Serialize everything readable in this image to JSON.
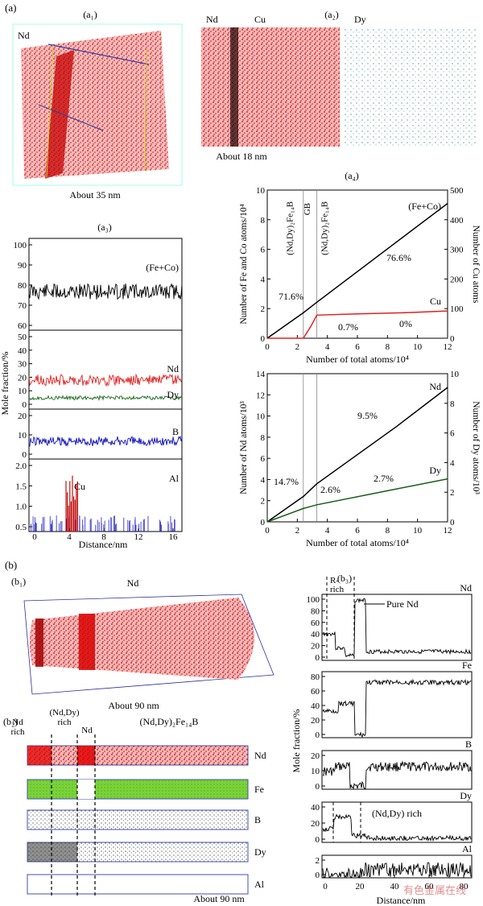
{
  "part_a_label": "(a)",
  "part_b_label": "(b)",
  "a1": {
    "label": "(a₁)",
    "element": "Nd",
    "size_caption": "About 35 nm"
  },
  "a2": {
    "label": "(a₂)",
    "elements": [
      "Nd",
      "Cu",
      "Dy"
    ],
    "size_caption": "About 18 nm"
  },
  "a3": {
    "label": "(a₃)",
    "ylabel": "Mole fraction/%",
    "xlabel": "Distance/nm",
    "x_ticks": [
      "0",
      "4",
      "8",
      "12",
      "16"
    ],
    "panels": [
      {
        "name": "(Fe+Co)",
        "y_ticks": [
          "100",
          "90",
          "80",
          "70",
          "60"
        ]
      },
      {
        "name": "Nd",
        "name2": "Dy",
        "y_ticks": [
          "50",
          "40",
          "30",
          "20",
          "10",
          "0"
        ]
      },
      {
        "name": "B",
        "y_ticks": [
          "20",
          "10",
          "0"
        ]
      },
      {
        "name": "Al",
        "name2": "Cu",
        "y_ticks": [
          "2.0",
          "1.5",
          "1.0",
          "0.5"
        ]
      }
    ]
  },
  "a4": {
    "label": "(a₄)",
    "xlabel": "Number of total atoms/10⁴",
    "x_ticks": [
      "0",
      "2",
      "4",
      "6",
      "8",
      "10",
      "12"
    ],
    "top": {
      "ylabel_left": "Number of Fe and Co atoms/10⁴",
      "ylabel_right": "Number of Cu atoms",
      "left_ticks": [
        "0",
        "2",
        "4",
        "6",
        "8",
        "10"
      ],
      "right_ticks": [
        "0",
        "100",
        "200",
        "300",
        "400",
        "500"
      ],
      "phase_left": "(Nd,Dy)₂Fe₁₄B",
      "phase_gb": "GB",
      "phase_right": "(Nd,Dy)₂Fe₁₄B",
      "series_fe": "(Fe+Co)",
      "series_cu": "Cu",
      "ann_716": "71.6%",
      "ann_766": "76.6%",
      "ann_07": "0.7%",
      "ann_0": "0%"
    },
    "bottom": {
      "ylabel_left": "Number of Nd atoms/10³",
      "ylabel_right": "Number of Dy atoms/10³",
      "left_ticks": [
        "0",
        "2",
        "4",
        "6",
        "8",
        "10",
        "12",
        "14"
      ],
      "right_ticks": [
        "0",
        "2",
        "4",
        "6",
        "8",
        "10"
      ],
      "series_nd": "Nd",
      "series_dy": "Dy",
      "ann_147": "14.7%",
      "ann_95": "9.5%",
      "ann_26": "2.6%",
      "ann_27": "2.7%"
    }
  },
  "b1": {
    "label": "(b₁)",
    "element": "Nd",
    "size_caption": "About 90 nm"
  },
  "b2": {
    "label": "(b₂)",
    "regions": [
      "Nd rich",
      "(Nd,Dy) rich",
      "Nd",
      "(Nd,Dy)₂Fe₁₄B"
    ],
    "elements": [
      "Nd",
      "Fe",
      "B",
      "Dy",
      "Al"
    ],
    "size_caption": "About 90 nm"
  },
  "b3": {
    "label": "(b₃)",
    "r_rich": "R-rich",
    "ylabel": "Mole fraction/%",
    "xlabel": "Distance/nm",
    "x_ticks": [
      "0",
      "20",
      "40",
      "60",
      "80"
    ],
    "panels": [
      {
        "name": "Nd",
        "y_ticks": [
          "100",
          "80",
          "60",
          "40",
          "20",
          "0"
        ],
        "annotation": "Pure Nd"
      },
      {
        "name": "Fe",
        "y_ticks": [
          "80",
          "60",
          "40",
          "20",
          "0"
        ]
      },
      {
        "name": "B",
        "y_ticks": [
          "20",
          "10",
          "0"
        ]
      },
      {
        "name": "Dy",
        "y_ticks": [
          "40",
          "20",
          "0"
        ],
        "annotation": "(Nd,Dy) rich"
      },
      {
        "name": "Al",
        "y_ticks": [
          "2",
          "0"
        ]
      }
    ],
    "watermark": "有色金属在线"
  },
  "chart_data": [
    {
      "type": "line",
      "title": "(a₄) top",
      "xlabel": "Number of total atoms/10⁴",
      "ylabel": "Number of Fe and Co atoms/10⁴",
      "y2label": "Number of Cu atoms",
      "xlim": [
        0,
        12
      ],
      "ylim": [
        0,
        10
      ],
      "y2lim": [
        0,
        500
      ],
      "series": [
        {
          "name": "(Fe+Co)",
          "x": [
            0,
            2.4,
            3.3,
            12
          ],
          "y": [
            0,
            1.72,
            2.43,
            9.1
          ]
        },
        {
          "name": "Cu",
          "axis": "right",
          "x": [
            0,
            2.4,
            2.9,
            3.3,
            6,
            9,
            12
          ],
          "y": [
            0,
            0,
            40,
            78,
            82,
            86,
            92
          ]
        }
      ]
    },
    {
      "type": "line",
      "title": "(a₄) bottom",
      "xlabel": "Number of total atoms/10⁴",
      "ylabel": "Number of Nd atoms/10³",
      "y2label": "Number of Dy atoms/10³",
      "xlim": [
        0,
        12
      ],
      "ylim": [
        0,
        14
      ],
      "y2lim": [
        0,
        10
      ],
      "series": [
        {
          "name": "Nd",
          "x": [
            0,
            2.4,
            3.3,
            8.6,
            12
          ],
          "y": [
            0,
            2.4,
            3.6,
            9.0,
            12.7
          ]
        },
        {
          "name": "Dy",
          "axis": "right",
          "x": [
            0,
            2.4,
            3.3,
            8,
            12
          ],
          "y": [
            0,
            0.9,
            1.15,
            2.1,
            2.9
          ]
        }
      ]
    }
  ]
}
